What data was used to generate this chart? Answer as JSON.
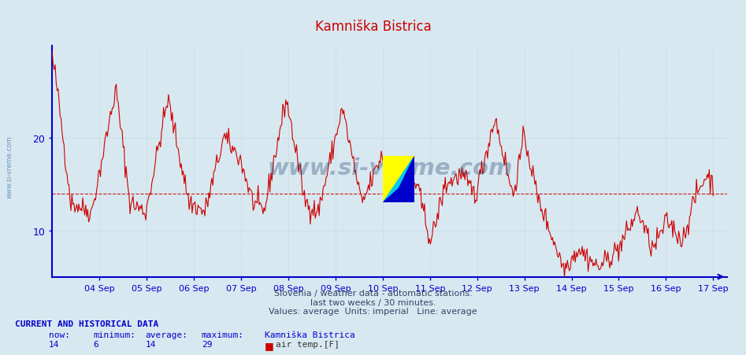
{
  "title": "Kamniška Bistrica",
  "title_color": "#cc0000",
  "background_color": "#d8e8f0",
  "plot_bg_color": "#d8e8f0",
  "line_color": "#cc0000",
  "axis_color": "#0000cc",
  "grid_color": "#b0c4d8",
  "average_value": 14,
  "y_min": 5,
  "y_max": 30,
  "y_ticks": [
    10,
    20
  ],
  "x_tick_positions": [
    1,
    2,
    3,
    4,
    5,
    6,
    7,
    8,
    9,
    10,
    11,
    12,
    13,
    14
  ],
  "x_labels": [
    "04 Sep",
    "05 Sep",
    "06 Sep",
    "07 Sep",
    "08 Sep",
    "09 Sep",
    "10 Sep",
    "11 Sep",
    "12 Sep",
    "13 Sep",
    "14 Sep",
    "15 Sep",
    "16 Sep",
    "17 Sep"
  ],
  "watermark": "www.si-vreme.com",
  "subtitle1": "Slovenia / weather data - automatic stations.",
  "subtitle2": "last two weeks / 30 minutes.",
  "subtitle3": "Values: average  Units: imperial   Line: average",
  "footer_title": "CURRENT AND HISTORICAL DATA",
  "footer_labels": [
    "now:",
    "minimum:",
    "average:",
    "maximum:",
    "Kamniška Bistrica"
  ],
  "footer_values": [
    "14",
    "6",
    "14",
    "29"
  ],
  "footer_series": "air temp.[F]",
  "now": 14,
  "minimum": 6,
  "average": 14,
  "maximum": 29
}
